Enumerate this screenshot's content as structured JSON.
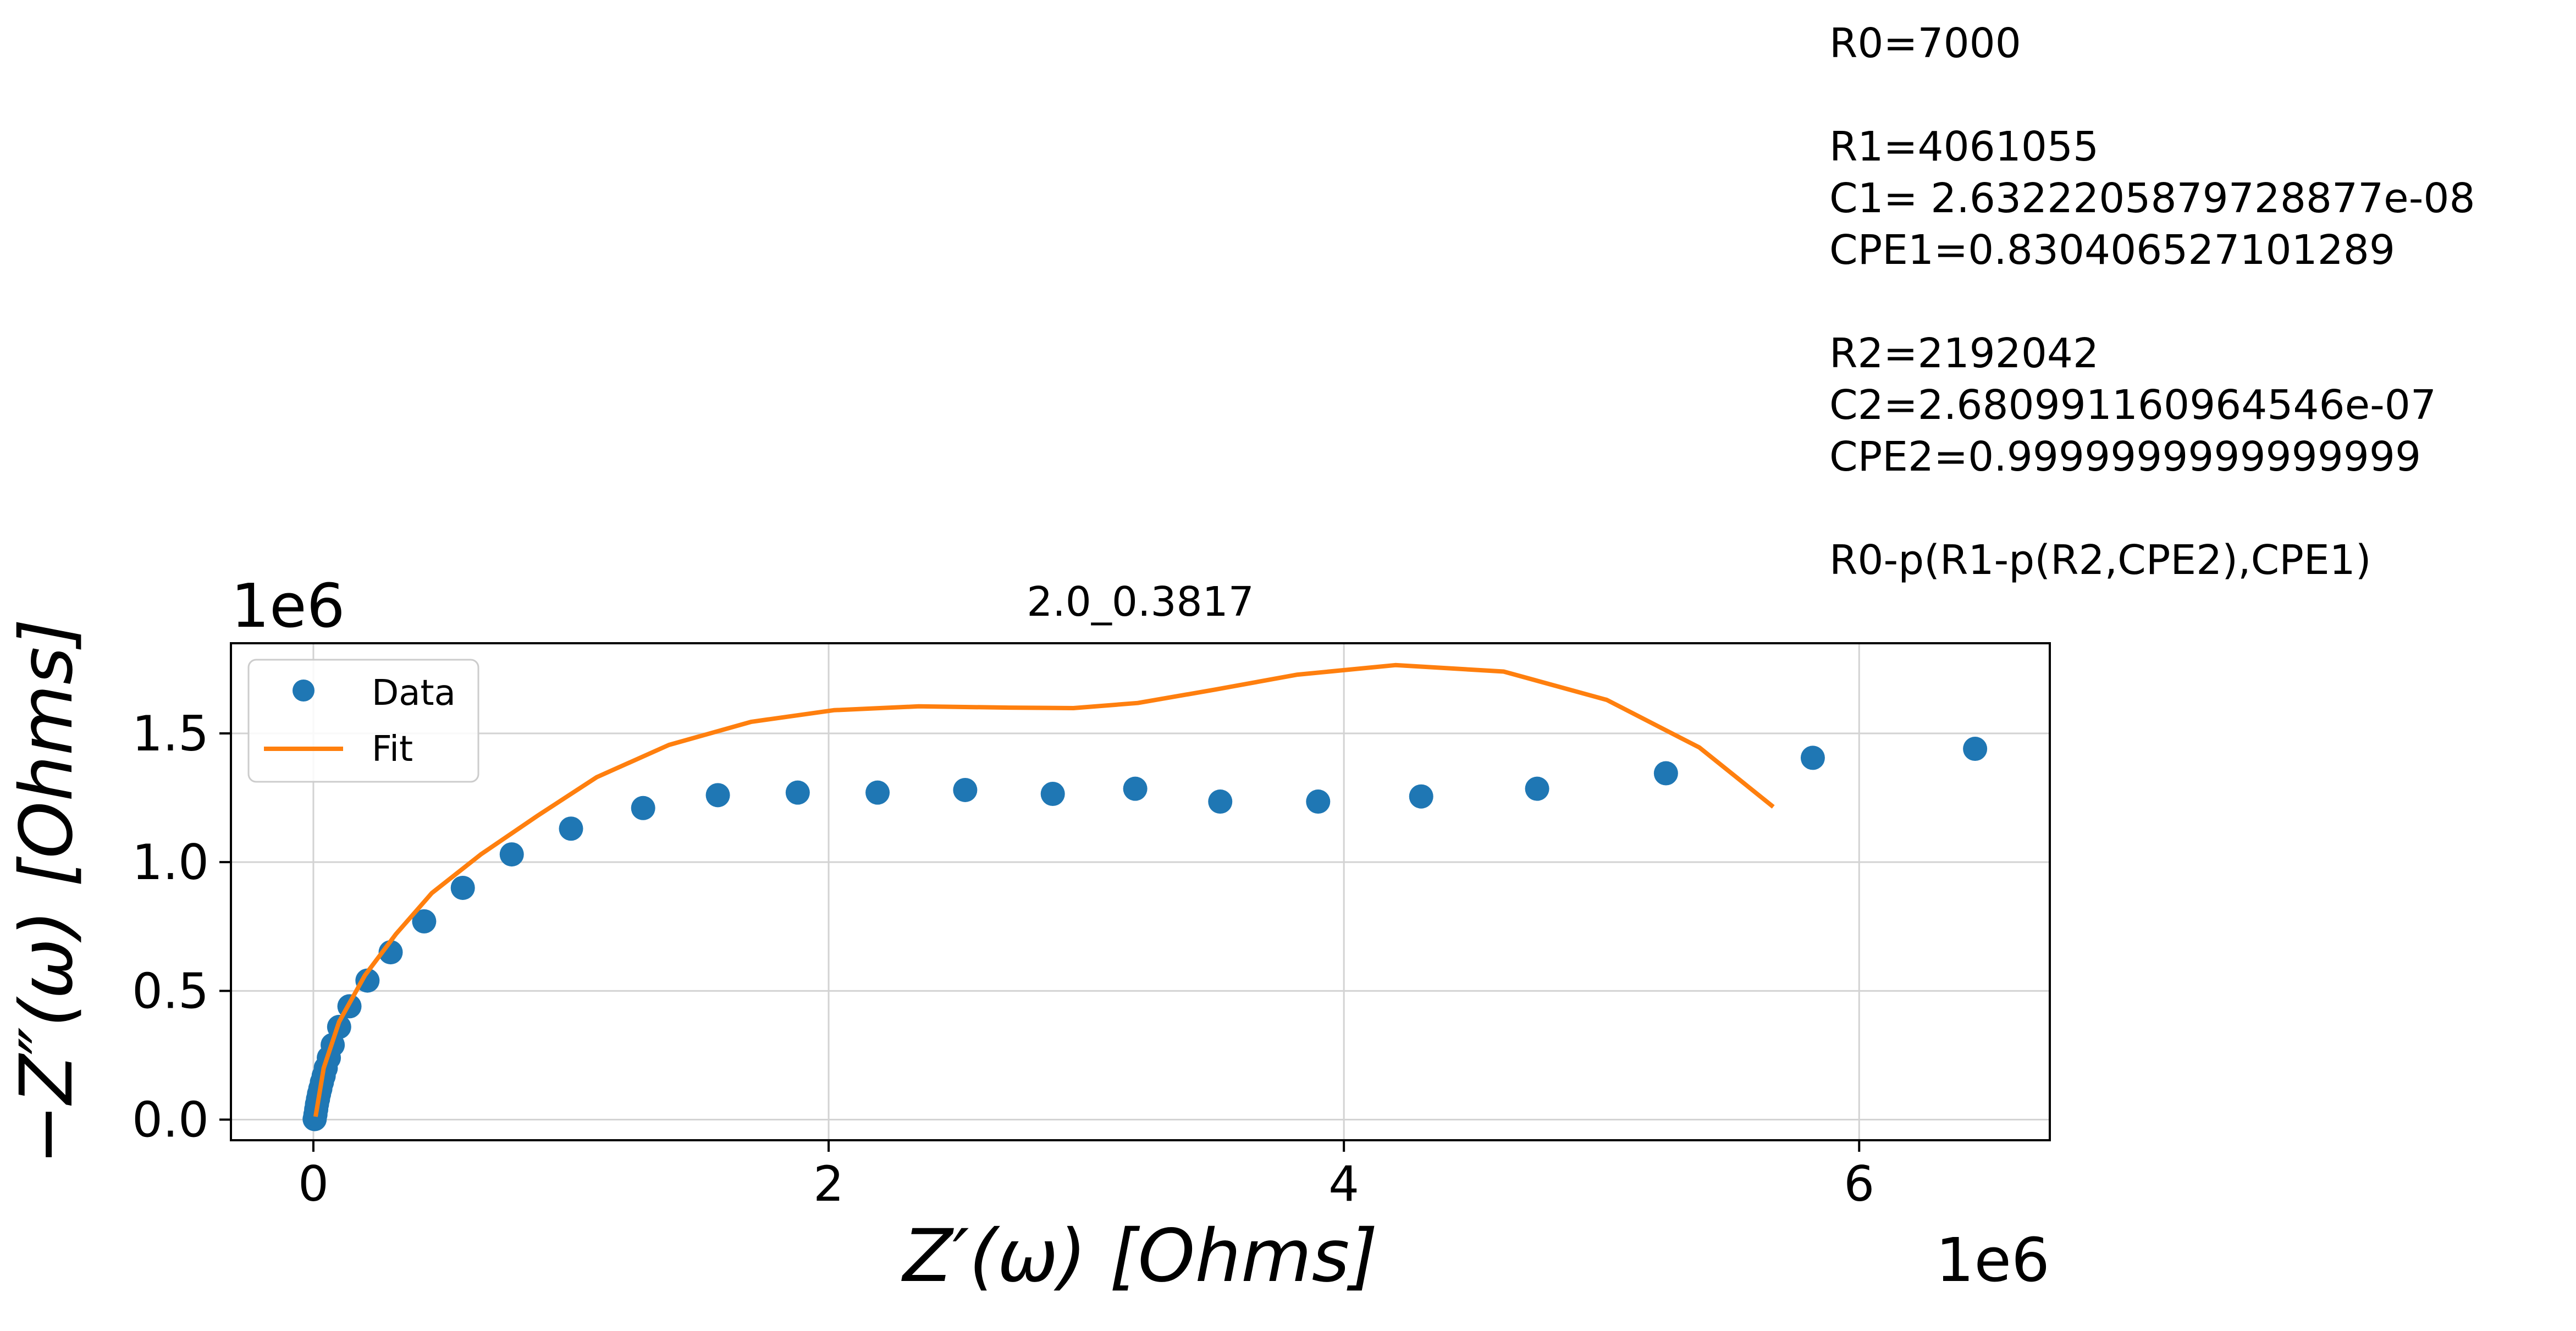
{
  "parameters_text": {
    "lines": [
      "R0=7000",
      "",
      "R1=4061055",
      "C1= 2.6322205879728877e-08",
      "CPE1=0.830406527101289",
      "",
      "R2=2192042",
      "C2=2.680991160964546e-07",
      "CPE2=0.9999999999999999",
      "",
      "R0-p(R1-p(R2,CPE2),CPE1)"
    ]
  },
  "chart_data": {
    "type": "scatter",
    "title": "2.0_0.3817",
    "xlabel": "Z′(ω) [Ohms]",
    "ylabel": "−Z″(ω) [Ohms]",
    "x_offset_text": "1e6",
    "y_offset_text": "1e6",
    "xlim": [
      -0.32,
      6.74
    ],
    "ylim": [
      -0.08,
      1.85
    ],
    "x_ticks": [
      0,
      2,
      4,
      6
    ],
    "x_tick_labels": [
      "0",
      "2",
      "4",
      "6"
    ],
    "y_ticks": [
      0.0,
      0.5,
      1.0,
      1.5
    ],
    "y_tick_labels": [
      "0.0",
      "0.5",
      "1.0",
      "1.5"
    ],
    "grid": true,
    "legend_position": "upper-left",
    "colors": {
      "data": "#1f77b4",
      "fit": "#ff7f0e",
      "grid": "#d3d3d3",
      "axes": "#000000"
    },
    "series": [
      {
        "name": "Data",
        "kind": "markers",
        "points": [
          [
            0.005,
            0.002
          ],
          [
            0.008,
            0.02
          ],
          [
            0.011,
            0.04
          ],
          [
            0.014,
            0.06
          ],
          [
            0.018,
            0.08
          ],
          [
            0.022,
            0.1
          ],
          [
            0.027,
            0.12
          ],
          [
            0.033,
            0.145
          ],
          [
            0.04,
            0.17
          ],
          [
            0.048,
            0.2
          ],
          [
            0.06,
            0.24
          ],
          [
            0.075,
            0.29
          ],
          [
            0.1,
            0.36
          ],
          [
            0.14,
            0.44
          ],
          [
            0.21,
            0.54
          ],
          [
            0.3,
            0.65
          ],
          [
            0.43,
            0.77
          ],
          [
            0.58,
            0.9
          ],
          [
            0.77,
            1.03
          ],
          [
            1.0,
            1.13
          ],
          [
            1.28,
            1.21
          ],
          [
            1.57,
            1.26
          ],
          [
            1.88,
            1.27
          ],
          [
            2.19,
            1.27
          ],
          [
            2.53,
            1.28
          ],
          [
            2.87,
            1.265
          ],
          [
            3.19,
            1.285
          ],
          [
            3.52,
            1.235
          ],
          [
            3.9,
            1.235
          ],
          [
            4.3,
            1.255
          ],
          [
            4.75,
            1.285
          ],
          [
            5.25,
            1.345
          ],
          [
            5.82,
            1.405
          ],
          [
            6.45,
            1.44
          ]
        ]
      },
      {
        "name": "Fit",
        "kind": "line",
        "points": [
          [
            0.01,
            0.02
          ],
          [
            0.04,
            0.2
          ],
          [
            0.1,
            0.38
          ],
          [
            0.2,
            0.56
          ],
          [
            0.32,
            0.72
          ],
          [
            0.46,
            0.88
          ],
          [
            0.65,
            1.03
          ],
          [
            0.87,
            1.18
          ],
          [
            1.1,
            1.33
          ],
          [
            1.38,
            1.455
          ],
          [
            1.7,
            1.545
          ],
          [
            2.02,
            1.59
          ],
          [
            2.35,
            1.605
          ],
          [
            2.7,
            1.6
          ],
          [
            2.95,
            1.598
          ],
          [
            3.2,
            1.618
          ],
          [
            3.5,
            1.67
          ],
          [
            3.82,
            1.728
          ],
          [
            4.2,
            1.765
          ],
          [
            4.62,
            1.74
          ],
          [
            5.02,
            1.63
          ],
          [
            5.38,
            1.445
          ],
          [
            5.66,
            1.22
          ]
        ]
      }
    ]
  }
}
